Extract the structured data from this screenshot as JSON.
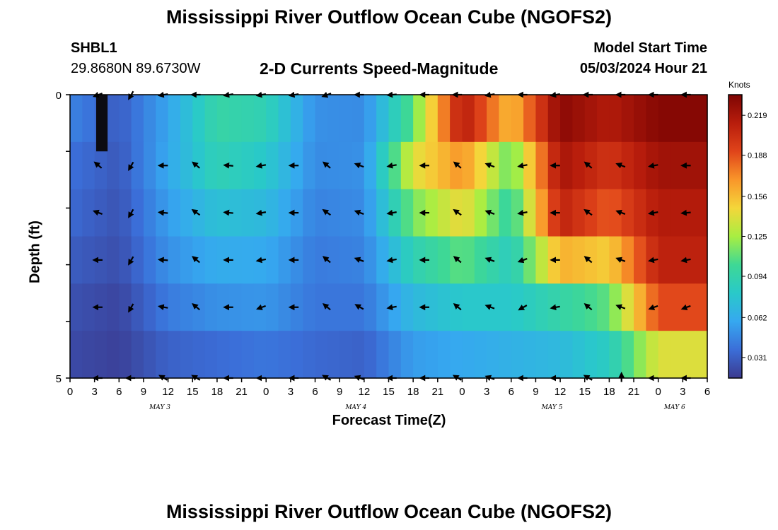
{
  "header": {
    "title": "Mississippi River Outflow Ocean Cube (NGOFS2)",
    "station": "SHBL1",
    "coords": "29.8680N  89.6730W",
    "subtitle": "2-D Currents Speed-Magnitude",
    "model_start_label": "Model Start Time",
    "model_start_value": "05/03/2024 Hour 21"
  },
  "footer": {
    "title": "Mississippi River Outflow Ocean Cube (NGOFS2)"
  },
  "colors": {
    "colormap": [
      "#3b3a8f",
      "#3b6ed8",
      "#36a8f0",
      "#29c9c9",
      "#3ed895",
      "#a8ee42",
      "#f4d63a",
      "#f9962a",
      "#e0441a",
      "#b81d0c",
      "#7e0503"
    ],
    "arrow": "#000000",
    "axis": "#000000"
  },
  "chart_data": {
    "type": "heatmap",
    "title": "2-D Currents Speed-Magnitude",
    "xlabel": "Forecast Time(Z)",
    "ylabel": "Depth (ft)",
    "x_tick_labels": [
      "0",
      "3",
      "6",
      "9",
      "12",
      "15",
      "18",
      "21",
      "0",
      "3",
      "6",
      "9",
      "12",
      "15",
      "18",
      "21",
      "0",
      "3",
      "6",
      "9",
      "12",
      "15",
      "18",
      "21",
      "0",
      "3",
      "6"
    ],
    "date_labels": [
      {
        "label": "MAY 3",
        "hour": 11
      },
      {
        "label": "MAY 4",
        "hour": 35
      },
      {
        "label": "MAY 5",
        "hour": 59
      },
      {
        "label": "MAY 6",
        "hour": 74
      }
    ],
    "x_range_hours": [
      0,
      78
    ],
    "y_tick_labels": [
      "0",
      "",
      "",
      "",
      "",
      "5"
    ],
    "ylim": [
      0,
      5
    ],
    "colorbar": {
      "label": "Knots",
      "ticks": [
        "0.031",
        "0.062",
        "0.094",
        "0.125",
        "0.156",
        "0.188",
        "0.219"
      ],
      "range": [
        0.015,
        0.235
      ]
    },
    "row_depths_ft": [
      0,
      1,
      2,
      3,
      4,
      5
    ],
    "column_hours": [
      0,
      6,
      12,
      18,
      24,
      30,
      36,
      42,
      48,
      54,
      60,
      66,
      72,
      78
    ],
    "speed_knots": [
      [
        0.045,
        0.03,
        0.058,
        0.096,
        0.09,
        0.05,
        0.048,
        0.11,
        0.215,
        0.155,
        0.23,
        0.215,
        0.232,
        0.232
      ],
      [
        0.038,
        0.028,
        0.06,
        0.09,
        0.08,
        0.048,
        0.05,
        0.14,
        0.17,
        0.11,
        0.22,
        0.2,
        0.222,
        0.222
      ],
      [
        0.035,
        0.026,
        0.055,
        0.075,
        0.07,
        0.045,
        0.048,
        0.115,
        0.145,
        0.095,
        0.21,
        0.185,
        0.215,
        0.215
      ],
      [
        0.03,
        0.024,
        0.05,
        0.062,
        0.06,
        0.042,
        0.045,
        0.09,
        0.11,
        0.085,
        0.16,
        0.15,
        0.21,
        0.21
      ],
      [
        0.025,
        0.02,
        0.042,
        0.05,
        0.052,
        0.04,
        0.04,
        0.07,
        0.08,
        0.08,
        0.095,
        0.11,
        0.19,
        0.19
      ],
      [
        0.022,
        0.018,
        0.032,
        0.036,
        0.04,
        0.035,
        0.032,
        0.055,
        0.06,
        0.065,
        0.07,
        0.085,
        0.14,
        0.14
      ]
    ],
    "vector_hours": [
      3.5,
      7.5,
      11.5,
      15.5,
      19.5,
      23.5,
      27.5,
      31.5,
      35.5,
      39.5,
      43.5,
      47.5,
      51.5,
      55.5,
      59.5,
      63.5,
      67.5,
      71.5,
      75.5
    ],
    "vector_depths_ft": [
      0,
      1,
      2,
      3,
      4,
      5
    ],
    "vector_dir_deg": [
      [
        200,
        240,
        190,
        180,
        190,
        190,
        190,
        200,
        180,
        185,
        180,
        180,
        190,
        180,
        190,
        180,
        180,
        180,
        180
      ],
      [
        140,
        240,
        180,
        140,
        175,
        190,
        180,
        140,
        160,
        190,
        180,
        140,
        160,
        190,
        180,
        140,
        160,
        190,
        180
      ],
      [
        160,
        240,
        175,
        145,
        175,
        190,
        180,
        145,
        160,
        190,
        180,
        145,
        160,
        190,
        180,
        145,
        160,
        190,
        185
      ],
      [
        180,
        240,
        175,
        140,
        180,
        190,
        180,
        140,
        160,
        190,
        180,
        140,
        160,
        200,
        180,
        140,
        160,
        190,
        190
      ],
      [
        180,
        240,
        170,
        140,
        180,
        200,
        180,
        140,
        150,
        190,
        180,
        140,
        160,
        210,
        190,
        140,
        160,
        200,
        200
      ],
      [
        180,
        180,
        150,
        150,
        180,
        180,
        180,
        150,
        160,
        180,
        180,
        150,
        160,
        180,
        180,
        150,
        90,
        180,
        180
      ]
    ],
    "grid": false,
    "legend": "none"
  }
}
